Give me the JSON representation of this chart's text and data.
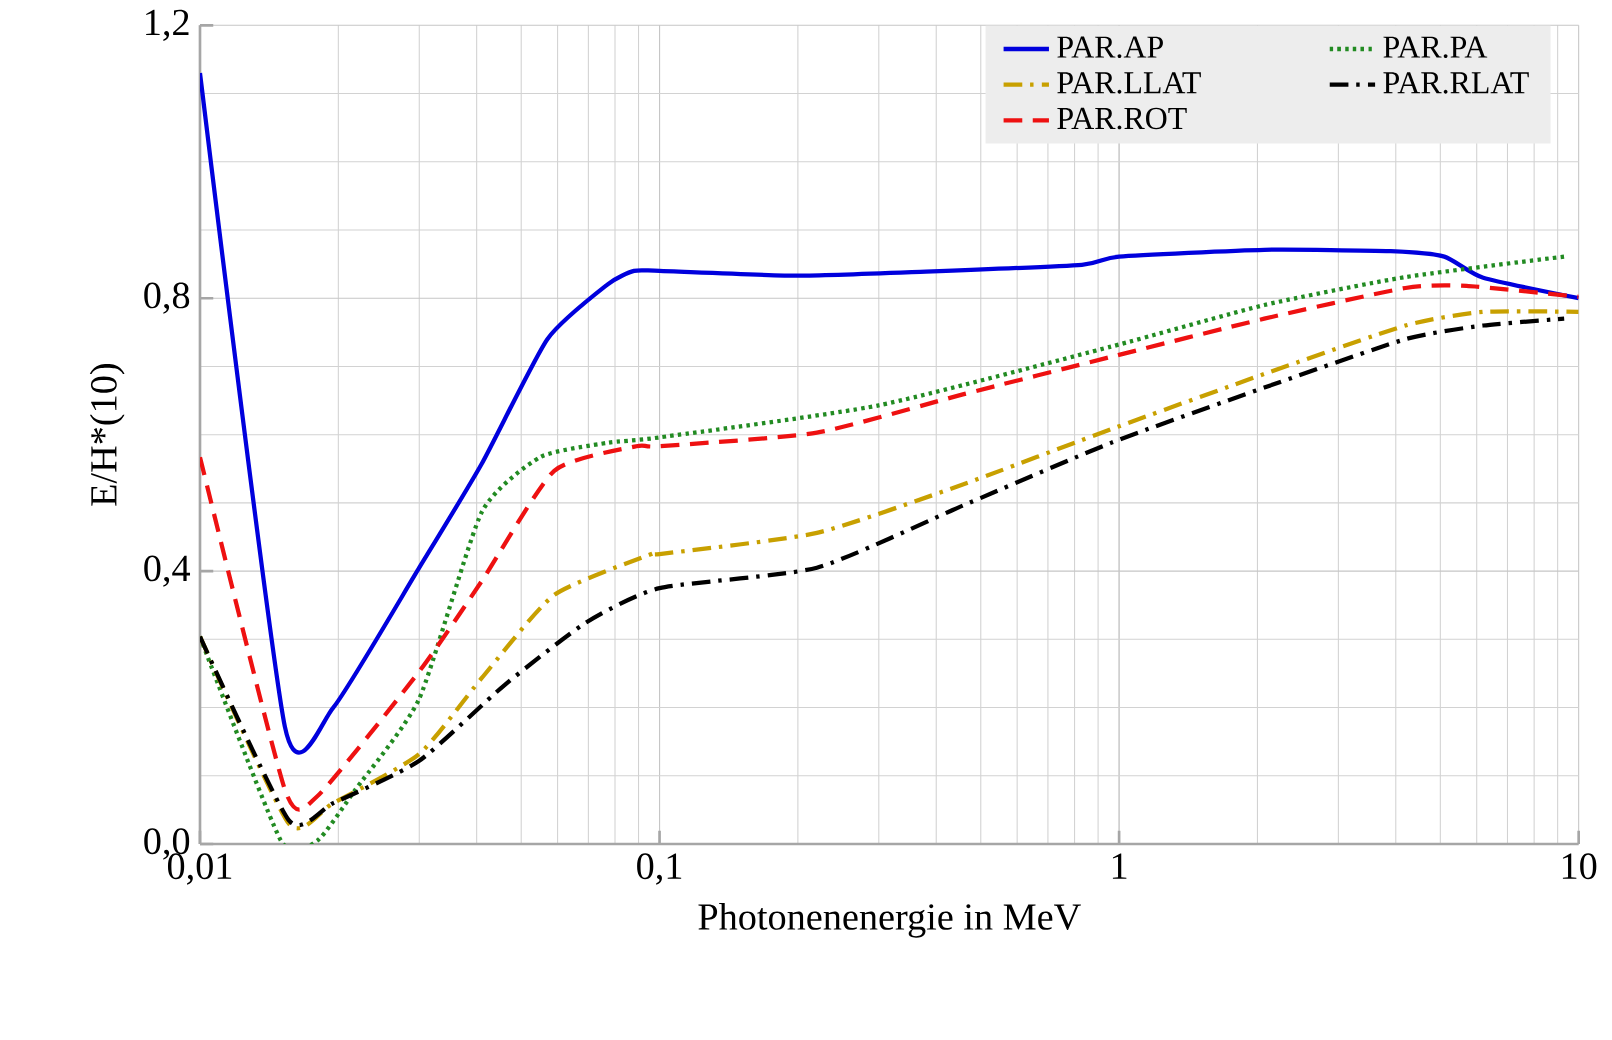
{
  "chart_data": {
    "type": "line",
    "xlabel": "Photonenenergie in MeV",
    "ylabel": "E/H*(10)",
    "log": "x",
    "grid": true,
    "legend": "top right",
    "xlim": [
      0.01,
      10
    ],
    "xticks": [
      {
        "value": 0.01,
        "label": "0,01"
      },
      {
        "value": 0.1,
        "label": "0,1"
      },
      1,
      10
    ],
    "ylim": [
      0,
      1.2
    ],
    "yticks": [
      {
        "value": 0,
        "label": "0,0"
      },
      {
        "value": 0.4,
        "label": "0,4"
      },
      {
        "value": 0.8,
        "label": "0,8"
      },
      {
        "value": 1.2,
        "label": "1,2"
      }
    ],
    "series": [
      {
        "name": "PAR.AP",
        "color": "#0000dd",
        "line_style": "solid",
        "x": [
          0.01,
          0.0153,
          0.0195,
          0.03,
          0.041,
          0.057,
          0.077,
          0.088,
          0.1,
          0.2,
          0.38,
          0.83,
          1.0,
          2.07,
          3.9,
          5.1,
          6.2,
          10
        ],
        "values": [
          1.13,
          0.172,
          0.2,
          0.405,
          0.557,
          0.74,
          0.82,
          0.84,
          0.84,
          0.833,
          0.839,
          0.849,
          0.861,
          0.871,
          0.869,
          0.861,
          0.83,
          0.8
        ]
      },
      {
        "name": "PAR.PA",
        "color": "#228b22",
        "line_style": "dotted",
        "x": [
          0.01,
          0.015,
          0.018,
          0.0218,
          0.03,
          0.041,
          0.055,
          0.077,
          0.1,
          0.3,
          0.96,
          2.07,
          4.2,
          9.3
        ],
        "values": [
          0.304,
          0.005,
          0.005,
          0.08,
          0.213,
          0.486,
          0.567,
          0.588,
          0.596,
          0.643,
          0.729,
          0.79,
          0.831,
          0.861
        ]
      },
      {
        "name": "PAR.LLAT",
        "color": "#c8a000",
        "line_style": "dashdot",
        "x": [
          0.01,
          0.0156,
          0.0195,
          0.03,
          0.041,
          0.059,
          0.096,
          0.1,
          0.22,
          0.457,
          0.96,
          2.07,
          4.2,
          6.2,
          10
        ],
        "values": [
          0.304,
          0.03,
          0.06,
          0.132,
          0.243,
          0.365,
          0.425,
          0.425,
          0.456,
          0.527,
          0.608,
          0.689,
          0.76,
          0.78,
          0.78
        ]
      },
      {
        "name": "PAR.RLAT",
        "color": "#000000",
        "line_style": "dashdot",
        "x": [
          0.01,
          0.0156,
          0.0195,
          0.03,
          0.046,
          0.069,
          0.1,
          0.22,
          0.457,
          0.96,
          2.07,
          4.2,
          6.2,
          9.3
        ],
        "values": [
          0.304,
          0.035,
          0.06,
          0.122,
          0.233,
          0.324,
          0.375,
          0.405,
          0.496,
          0.588,
          0.669,
          0.74,
          0.76,
          0.77
        ]
      },
      {
        "name": "PAR.ROT",
        "color": "#ee1111",
        "line_style": "dashed",
        "x": [
          0.01,
          0.0153,
          0.018,
          0.03,
          0.041,
          0.059,
          0.089,
          0.1,
          0.22,
          0.457,
          0.96,
          2.07,
          4.2,
          5.7,
          10
        ],
        "values": [
          0.567,
          0.08,
          0.07,
          0.253,
          0.385,
          0.547,
          0.583,
          0.583,
          0.603,
          0.659,
          0.714,
          0.77,
          0.815,
          0.818,
          0.802
        ]
      }
    ]
  }
}
